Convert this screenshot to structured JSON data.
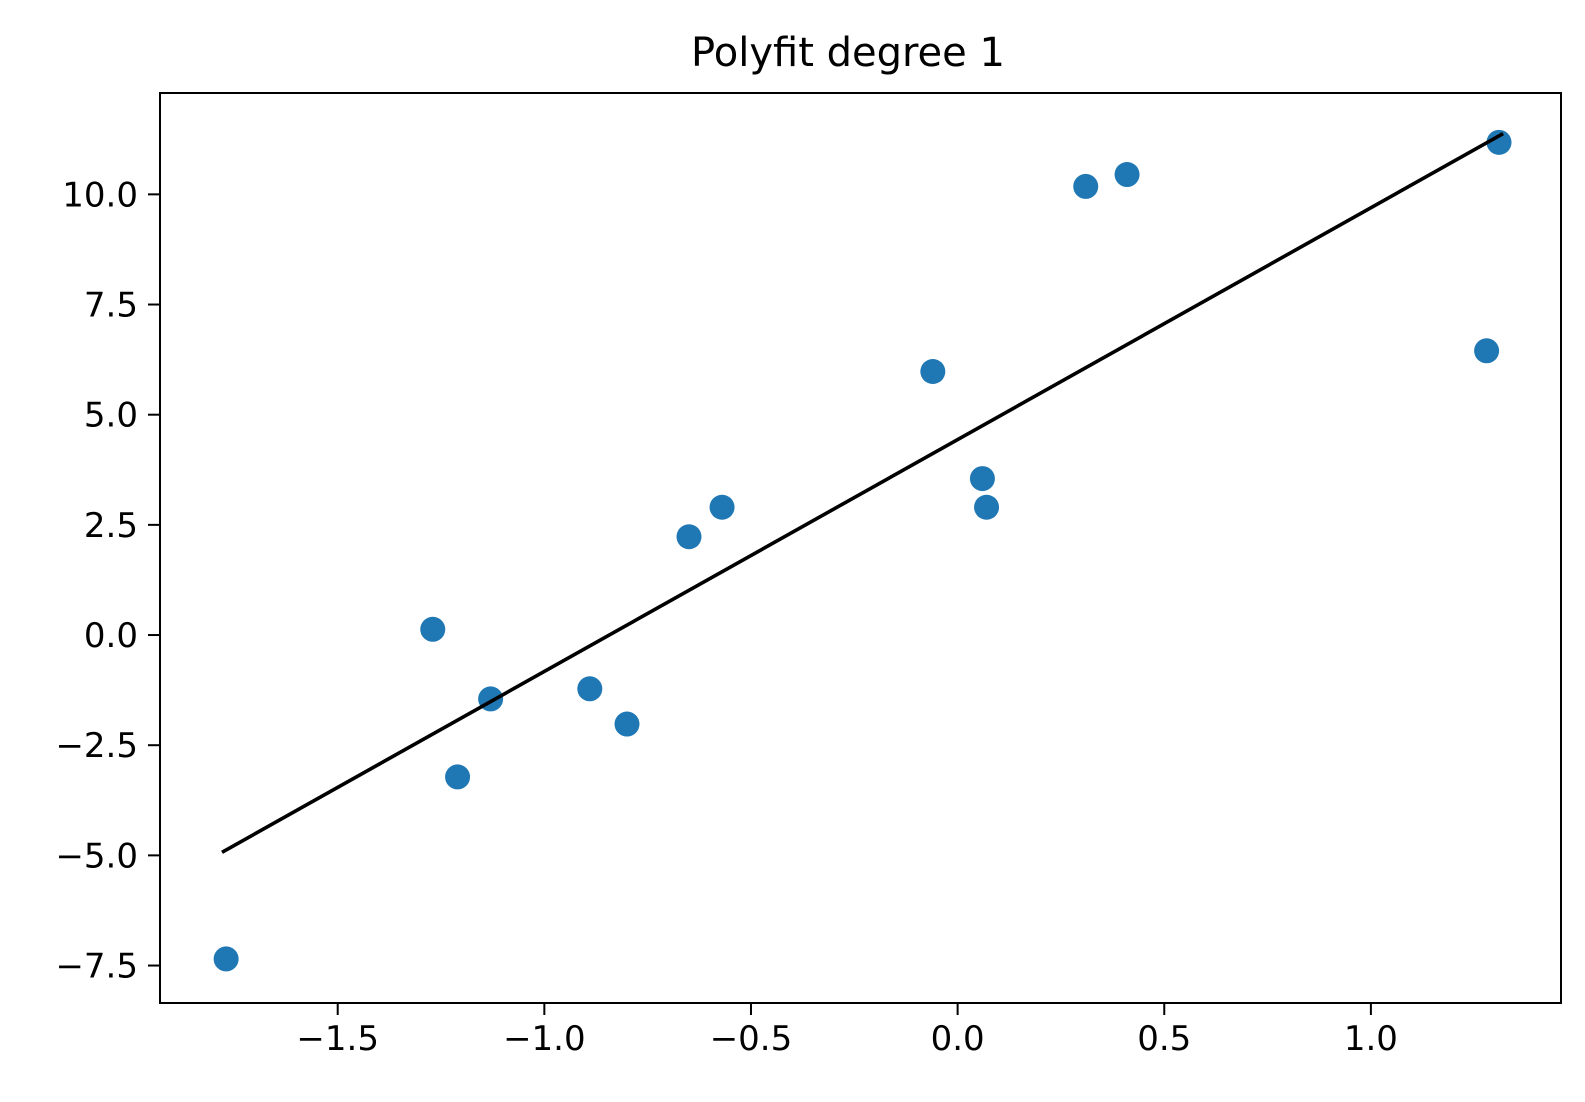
{
  "chart_data": {
    "type": "scatter",
    "title": "Polyfit degree 1",
    "xlabel": "",
    "ylabel": "",
    "xlim": [
      -1.93,
      1.46
    ],
    "ylim": [
      -8.35,
      12.3
    ],
    "xticks": [
      -1.5,
      -1.0,
      -0.5,
      0.0,
      0.5,
      1.0
    ],
    "xtick_labels": [
      "−1.5",
      "−1.0",
      "−0.5",
      "0.0",
      "0.5",
      "1.0"
    ],
    "yticks": [
      -7.5,
      -5.0,
      -2.5,
      0.0,
      2.5,
      5.0,
      7.5,
      10.0
    ],
    "ytick_labels": [
      "−7.5",
      "−5.0",
      "−2.5",
      "0.0",
      "2.5",
      "5.0",
      "7.5",
      "10.0"
    ],
    "grid": false,
    "series": [
      {
        "type": "scatter",
        "color": "#1f77b4",
        "points": [
          {
            "x": -1.77,
            "y": -7.35
          },
          {
            "x": -1.27,
            "y": 0.13
          },
          {
            "x": -1.21,
            "y": -3.22
          },
          {
            "x": -1.13,
            "y": -1.45
          },
          {
            "x": -0.89,
            "y": -1.22
          },
          {
            "x": -0.8,
            "y": -2.02
          },
          {
            "x": -0.65,
            "y": 2.23
          },
          {
            "x": -0.57,
            "y": 2.9
          },
          {
            "x": -0.06,
            "y": 5.98
          },
          {
            "x": 0.06,
            "y": 3.55
          },
          {
            "x": 0.07,
            "y": 2.9
          },
          {
            "x": 0.31,
            "y": 10.18
          },
          {
            "x": 0.41,
            "y": 10.45
          },
          {
            "x": 1.28,
            "y": 6.45
          },
          {
            "x": 1.31,
            "y": 11.18
          }
        ]
      },
      {
        "type": "line",
        "color": "#000000",
        "x": [
          -1.78,
          1.32
        ],
        "y": [
          -4.93,
          11.38
        ]
      }
    ]
  }
}
